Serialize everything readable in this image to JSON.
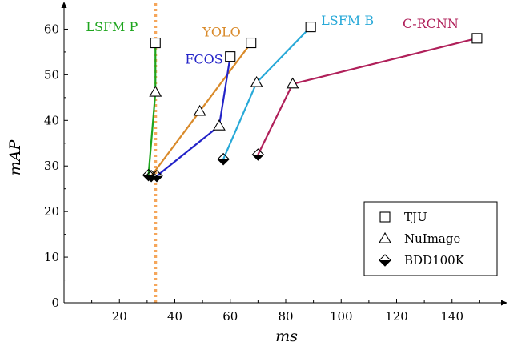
{
  "chart_data": {
    "type": "line",
    "xlabel": "ms",
    "ylabel": "mAP",
    "xlim": [
      0,
      160
    ],
    "ylim": [
      0,
      65
    ],
    "xticks": [
      20,
      40,
      60,
      80,
      100,
      120,
      140
    ],
    "yticks": [
      0,
      10,
      20,
      30,
      40,
      50,
      60
    ],
    "grid": false,
    "legend_position": "bottom-right",
    "vertical_reference_line": {
      "x": 33,
      "color": "#f5a65b",
      "style": "dotted"
    },
    "legend": [
      {
        "label": "TJU",
        "marker": "square"
      },
      {
        "label": "NuImage",
        "marker": "triangle"
      },
      {
        "label": "BDD100K",
        "marker": "diamond"
      }
    ],
    "series": [
      {
        "name": "LSFM P",
        "color": "#1ea51e",
        "points": [
          {
            "x": 30.5,
            "y": 28.0,
            "dataset": "BDD100K"
          },
          {
            "x": 33.0,
            "y": 46.2,
            "dataset": "NuImage"
          },
          {
            "x": 33.0,
            "y": 57.0,
            "dataset": "TJU"
          }
        ]
      },
      {
        "name": "YOLO",
        "color": "#d98a2a",
        "points": [
          {
            "x": 31.5,
            "y": 27.8,
            "dataset": "BDD100K"
          },
          {
            "x": 49.0,
            "y": 42.0,
            "dataset": "NuImage"
          },
          {
            "x": 67.5,
            "y": 57.0,
            "dataset": "TJU"
          }
        ]
      },
      {
        "name": "FCOS",
        "color": "#2323c8",
        "points": [
          {
            "x": 33.5,
            "y": 27.8,
            "dataset": "BDD100K"
          },
          {
            "x": 56.0,
            "y": 38.8,
            "dataset": "NuImage"
          },
          {
            "x": 60.0,
            "y": 54.0,
            "dataset": "TJU"
          }
        ]
      },
      {
        "name": "LSFM B",
        "color": "#28a9d8",
        "points": [
          {
            "x": 57.5,
            "y": 31.5,
            "dataset": "BDD100K"
          },
          {
            "x": 69.5,
            "y": 48.3,
            "dataset": "NuImage"
          },
          {
            "x": 89.0,
            "y": 60.5,
            "dataset": "TJU"
          }
        ]
      },
      {
        "name": "C-RCNN",
        "color": "#b0205a",
        "points": [
          {
            "x": 70.0,
            "y": 32.5,
            "dataset": "BDD100K"
          },
          {
            "x": 82.5,
            "y": 48.0,
            "dataset": "NuImage"
          },
          {
            "x": 149.0,
            "y": 58.0,
            "dataset": "TJU"
          }
        ]
      }
    ]
  }
}
